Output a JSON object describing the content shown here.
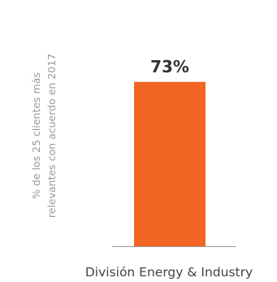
{
  "chart_data": {
    "type": "bar",
    "categories": [
      "División Energy & Industry"
    ],
    "values": [
      73
    ],
    "data_labels": [
      "73%"
    ],
    "ylabel": "% de los 25 clientes más relevantes con acuerdo en 2017",
    "ylabel_lines": [
      "% de los 25 clientes más",
      "relevantes con acuerdo en 2017"
    ],
    "ylim": [
      0,
      100
    ],
    "grid": false,
    "legend": "none",
    "colors": {
      "bar": "#F26522",
      "axis_line": "#999999",
      "value_label": "#333333",
      "category_label": "#444444",
      "ylabel": "#999999"
    }
  }
}
